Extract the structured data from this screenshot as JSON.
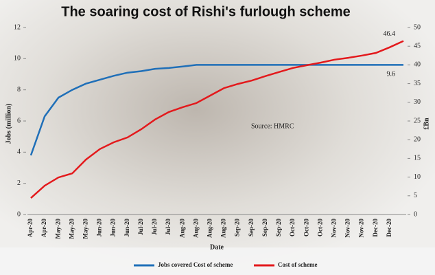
{
  "chart_data": {
    "type": "line",
    "title": "The soaring cost of Rishi's furlough scheme",
    "x_label": "Date",
    "y_label": "Jobs (million)",
    "y2_label": "£Bn",
    "source": "Source: HMRC",
    "categories": [
      "Apr-20",
      "Apr-20",
      "May-20",
      "May-20",
      "May-20",
      "Jun-20",
      "Jun-20",
      "Jun-20",
      "Jul-20",
      "Jul-20",
      "Jul-20",
      "Aug-20",
      "Aug-20",
      "Aug-20",
      "Aug-20",
      "Sep-20",
      "Sep-20",
      "Sep-20",
      "Sep-20",
      "Oct-20",
      "Oct-20",
      "Oct-20",
      "Nov-20",
      "Nov-20",
      "Nov-20",
      "Dec-20",
      "Dec-20",
      null
    ],
    "series": [
      {
        "name": "Jobs covered Cost of scheme",
        "color": "#1f6fb8",
        "values": [
          3.8,
          6.3,
          7.5,
          8.0,
          8.4,
          8.65,
          8.9,
          9.1,
          9.2,
          9.35,
          9.4,
          9.5,
          9.6,
          9.6,
          9.6,
          9.6,
          9.6,
          9.6,
          9.6,
          9.6,
          9.6,
          9.6,
          9.6,
          9.6,
          9.6,
          9.6,
          9.6,
          9.6
        ]
      },
      {
        "name": "Cost of scheme",
        "color": "#e3191c",
        "axis": "y2",
        "values": [
          4.4,
          7.7,
          9.9,
          11,
          14.7,
          17.5,
          19.3,
          20.6,
          22.8,
          25.4,
          27.4,
          28.7,
          29.8,
          31.8,
          33.8,
          34.9,
          35.8,
          37,
          38.1,
          39.2,
          39.9,
          40.6,
          41.4,
          41.9,
          42.5,
          43.2,
          44.7,
          46.4
        ]
      }
    ],
    "ylim": [
      0,
      12
    ],
    "yticks": [
      0,
      2,
      4,
      6,
      8,
      10,
      12
    ],
    "y2lim": [
      0,
      50
    ],
    "y2ticks": [
      0,
      5,
      10,
      15,
      20,
      25,
      30,
      35,
      40,
      45,
      50
    ],
    "legend": "bottom"
  }
}
